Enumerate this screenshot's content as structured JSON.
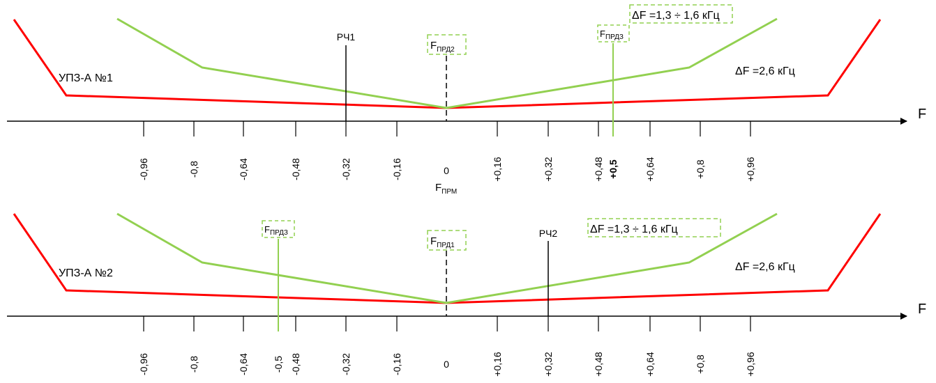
{
  "colors": {
    "red_line": "#ff0000",
    "green_line": "#92d050",
    "axis": "#000000",
    "dash_box": "#92d050"
  },
  "panels": [
    {
      "device_label": "УПЗ-А №1",
      "axis_label": "F",
      "tick_labels": [
        "-0,96",
        "-0,8",
        "-0,64",
        "-0,48",
        "-0,32",
        "-0,16",
        "0",
        "+0,16",
        "+0,32",
        "+0,48",
        "+0,5",
        "+0,64",
        "+0,8",
        "+0,96"
      ],
      "zero_sub_label": {
        "main": "F",
        "sub": "ПРМ"
      },
      "rch_label": "РЧ1",
      "center_box": {
        "main": "F",
        "sub": "ПРД2"
      },
      "side_box": {
        "main": "F",
        "sub": "ПРДЗ"
      },
      "df_narrow": "ΔF =1,3 ÷  1,6 кГц",
      "df_wide": "ΔF =2,6 кГц"
    },
    {
      "device_label": "УПЗ-А №2",
      "axis_label": "F",
      "tick_labels": [
        "-0,96",
        "-0,8",
        "-0,64",
        "-0,5",
        "-0,48",
        "-0,32",
        "-0,16",
        "0",
        "+0,16",
        "+0,32",
        "+0,48",
        "+0,64",
        "+0,8",
        "+0,96"
      ],
      "rch_label": "РЧ2",
      "center_box": {
        "main": "F",
        "sub": "ПРД1"
      },
      "side_box": {
        "main": "F",
        "sub": "ПРДЗ"
      },
      "df_narrow": "ΔF =1,3 ÷  1,6 кГц",
      "df_wide": "ΔF =2,6 кГц"
    }
  ]
}
